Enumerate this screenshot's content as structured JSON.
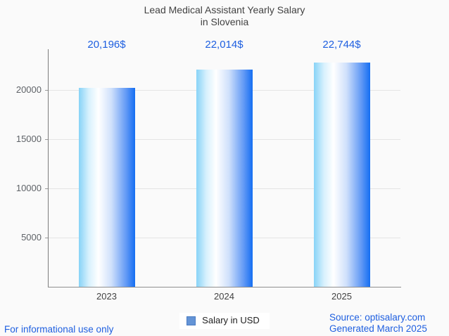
{
  "header": {
    "title_line1": "Lead Medical Assistant Yearly Salary",
    "title_line2": "in Slovenia"
  },
  "legend": {
    "label": "Salary in USD",
    "swatch_color": "#6494d6"
  },
  "footer": {
    "left_note": "For informational use only",
    "source_line1": "Source: optisalary.com",
    "source_line2": "Generated March 2025"
  },
  "chart_data": {
    "type": "bar",
    "title": "Lead Medical Assistant Yearly Salary in Slovenia",
    "categories": [
      "2023",
      "2024",
      "2025"
    ],
    "series": [
      {
        "name": "Salary in USD",
        "values": [
          20196,
          22014,
          22744
        ]
      }
    ],
    "value_labels": [
      "20,196$",
      "22,014$",
      "22,744$"
    ],
    "xlabel": "",
    "ylabel": "",
    "ylim": [
      0,
      24100
    ],
    "y_ticks": [
      5000,
      10000,
      15000,
      20000
    ],
    "grid": true,
    "legend_position": "bottom",
    "colors": {
      "bar_gradient_left": "#87d3f7",
      "bar_gradient_mid": "#ffffff",
      "bar_gradient_right": "#146ef2",
      "value_label": "#1e5fe0",
      "footer_text": "#1e5fe0",
      "title_text": "#424242",
      "axis_text": "#5f6368",
      "gridline": "#e4e4e4",
      "axis_line": "#8f8f8f",
      "background": "#fafafa",
      "legend_background": "#ffffff"
    }
  }
}
